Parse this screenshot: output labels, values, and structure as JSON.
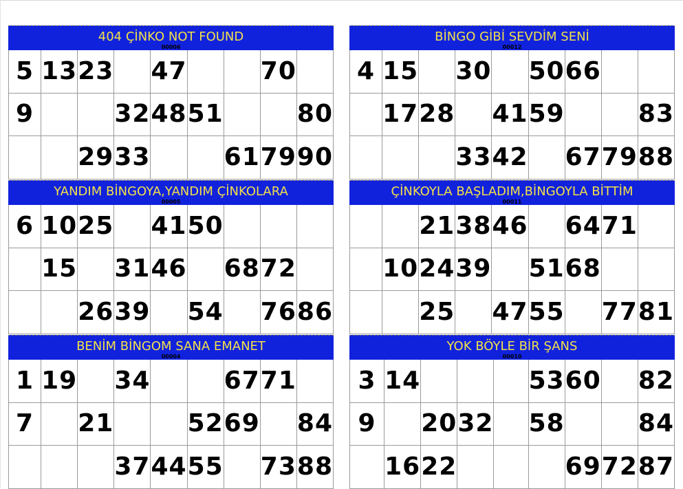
{
  "cards": [
    {
      "title": "404 ÇİNKO NOT FOUND",
      "serial": "00006",
      "rows": [
        [
          "5",
          "13",
          "23",
          "",
          "47",
          "",
          "",
          "70",
          ""
        ],
        [
          "9",
          "",
          "",
          "32",
          "48",
          "51",
          "",
          "",
          "80"
        ],
        [
          "",
          "",
          "29",
          "33",
          "",
          "",
          "61",
          "79",
          "90"
        ]
      ]
    },
    {
      "title": "BİNGO GİBİ SEVDİM SENİ",
      "serial": "00012",
      "rows": [
        [
          "4",
          "15",
          "",
          "30",
          "",
          "50",
          "66",
          "",
          ""
        ],
        [
          "",
          "17",
          "28",
          "",
          "41",
          "59",
          "",
          "",
          "83"
        ],
        [
          "",
          "",
          "",
          "33",
          "42",
          "",
          "67",
          "79",
          "88"
        ]
      ]
    },
    {
      "title": "YANDIM BİNGOYA,YANDIM ÇİNKOLARA",
      "serial": "00005",
      "rows": [
        [
          "6",
          "10",
          "25",
          "",
          "41",
          "50",
          "",
          "",
          ""
        ],
        [
          "",
          "15",
          "",
          "31",
          "46",
          "",
          "68",
          "72",
          ""
        ],
        [
          "",
          "",
          "26",
          "39",
          "",
          "54",
          "",
          "76",
          "86"
        ]
      ]
    },
    {
      "title": "ÇİNKOYLA BAŞLADIM,BİNGOYLA BİTTİM",
      "serial": "00011",
      "rows": [
        [
          "",
          "",
          "21",
          "38",
          "46",
          "",
          "64",
          "71",
          ""
        ],
        [
          "",
          "10",
          "24",
          "39",
          "",
          "51",
          "68",
          "",
          ""
        ],
        [
          "",
          "",
          "25",
          "",
          "47",
          "55",
          "",
          "77",
          "81"
        ]
      ]
    },
    {
      "title": "BENİM BİNGOM SANA EMANET",
      "serial": "00004",
      "rows": [
        [
          "1",
          "19",
          "",
          "34",
          "",
          "",
          "67",
          "71",
          ""
        ],
        [
          "7",
          "",
          "21",
          "",
          "",
          "52",
          "69",
          "",
          "84"
        ],
        [
          "",
          "",
          "",
          "37",
          "44",
          "55",
          "",
          "73",
          "88"
        ]
      ]
    },
    {
      "title": "YOK BÖYLE BİR ŞANS",
      "serial": "00010",
      "rows": [
        [
          "3",
          "14",
          "",
          "",
          "",
          "53",
          "60",
          "",
          "82"
        ],
        [
          "9",
          "",
          "20",
          "32",
          "",
          "58",
          "",
          "",
          "84"
        ],
        [
          "",
          "16",
          "22",
          "",
          "",
          "",
          "69",
          "72",
          "87"
        ]
      ]
    }
  ]
}
